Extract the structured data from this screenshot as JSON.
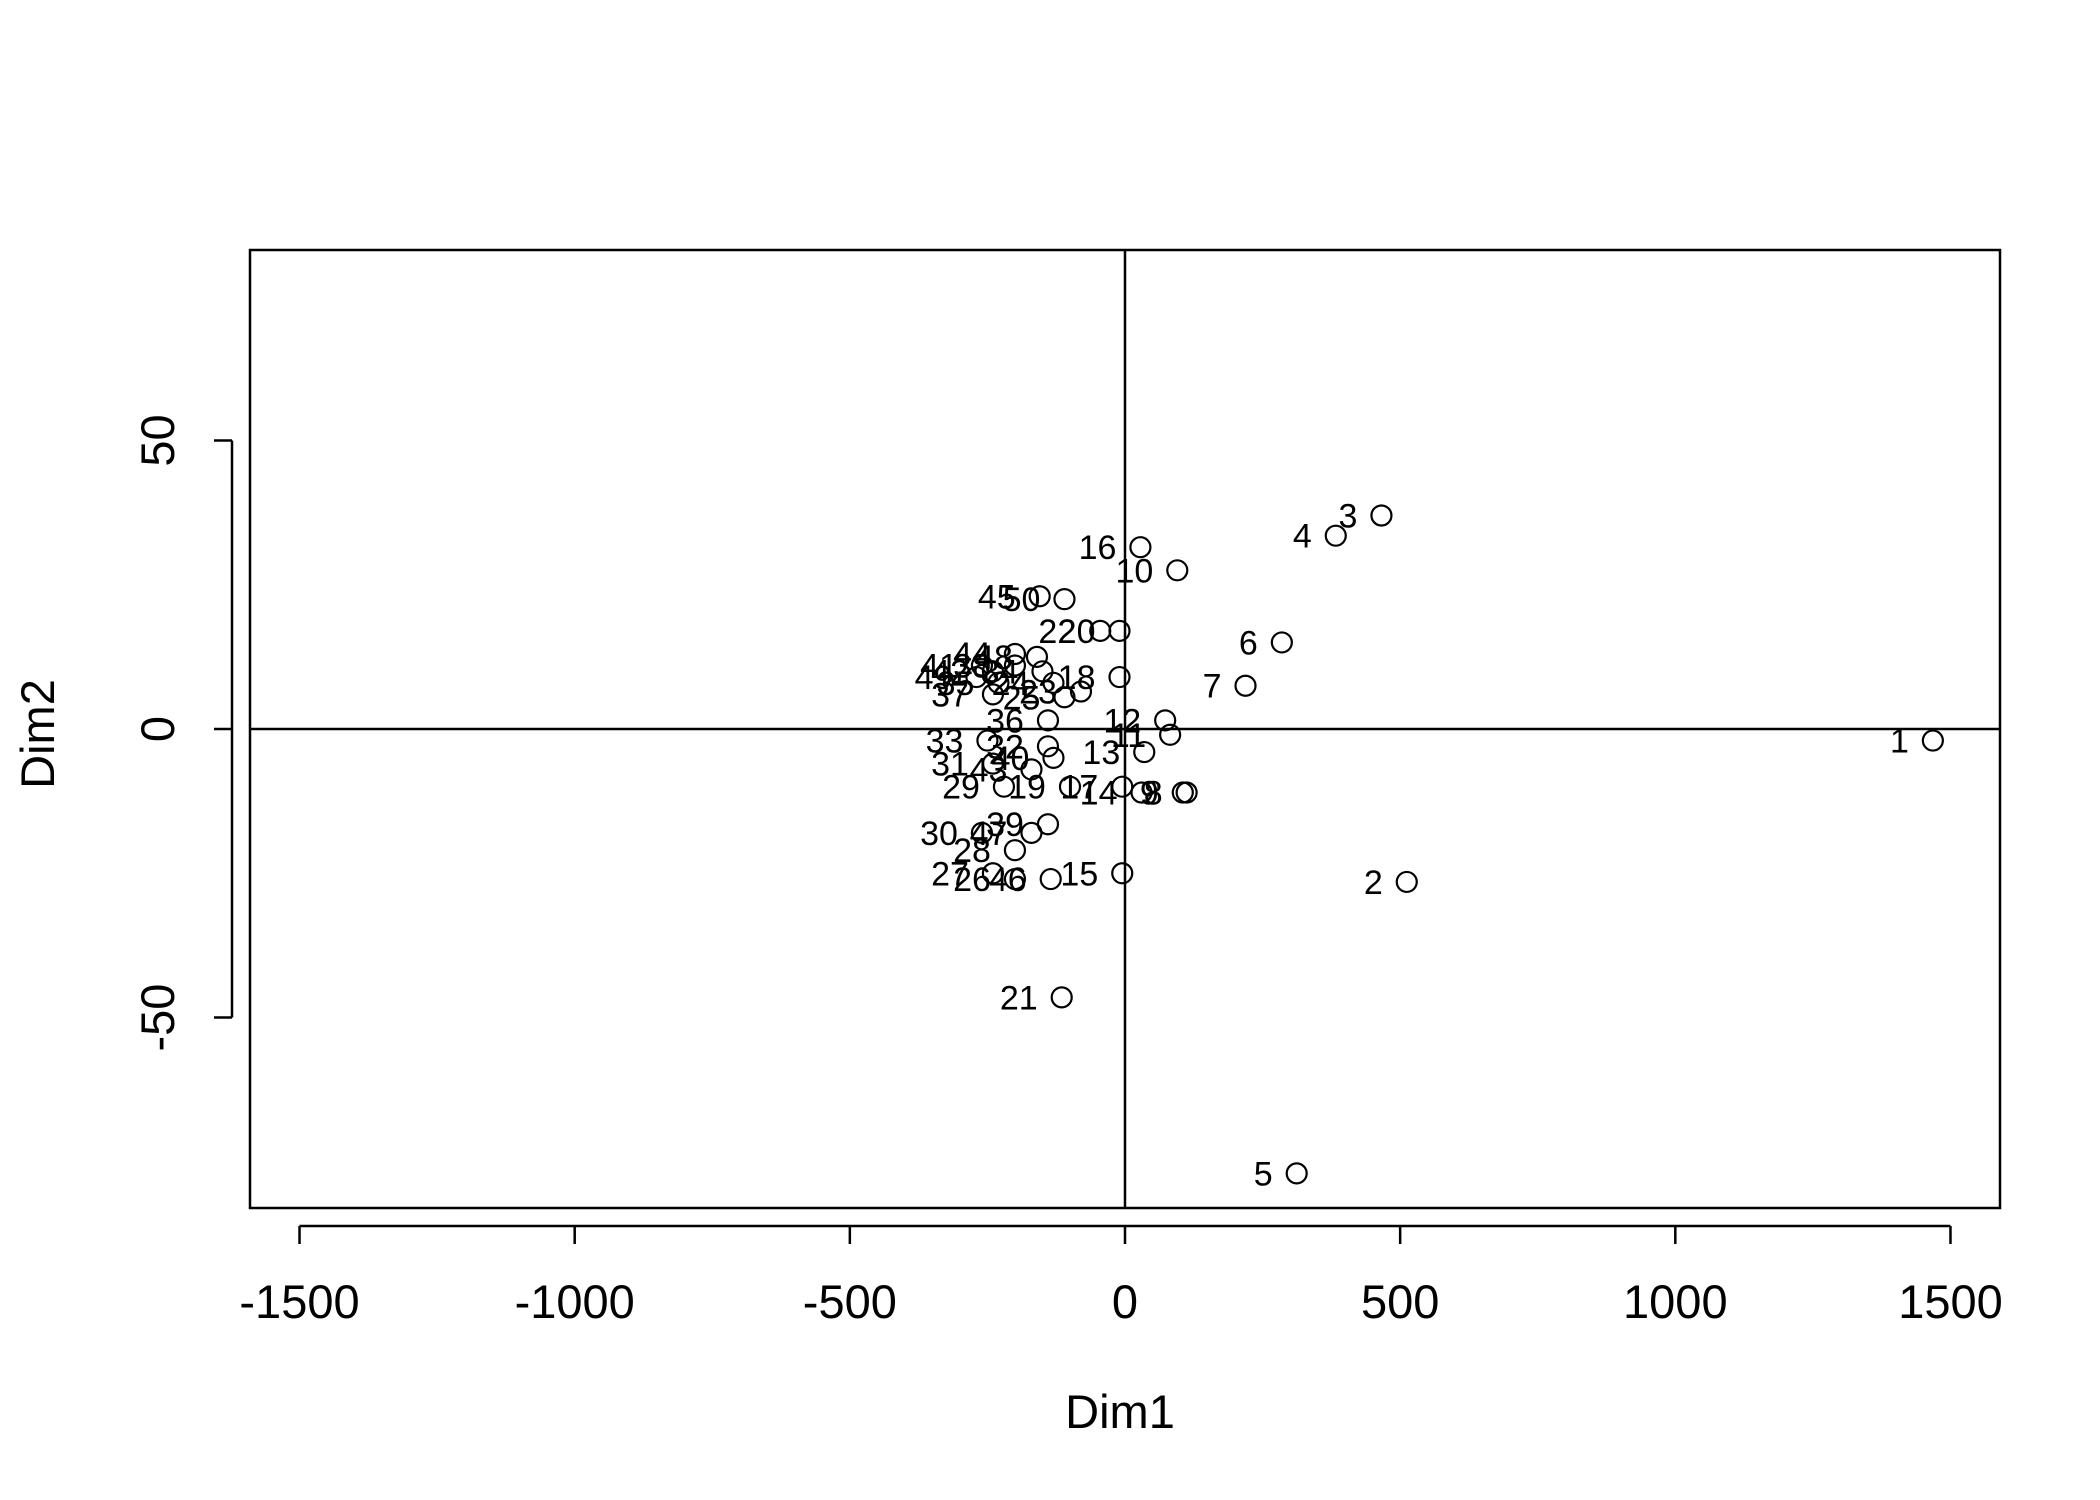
{
  "chart_data": {
    "type": "scatter",
    "title": "",
    "xlabel": "Dim1",
    "ylabel": "Dim2",
    "xlim": [
      -1590,
      1590
    ],
    "ylim": [
      -83,
      83
    ],
    "xticks": [
      -1500,
      -1000,
      -500,
      0,
      500,
      1000,
      1500
    ],
    "yticks": [
      -50,
      0,
      50
    ],
    "xtick_labels": [
      "-1500",
      "-1000",
      "-500",
      "0",
      "500",
      "1000",
      "1500"
    ],
    "ytick_labels": [
      "-50",
      "0",
      "50"
    ],
    "reference_lines": {
      "x": 0,
      "y": 0
    },
    "marker": "open-circle",
    "grid": false,
    "legend": "none",
    "points": [
      {
        "label": "1",
        "x": 1468,
        "y": -2
      },
      {
        "label": "2",
        "x": 512,
        "y": -26.5
      },
      {
        "label": "3",
        "x": 466,
        "y": 37
      },
      {
        "label": "4",
        "x": 383,
        "y": 33.5
      },
      {
        "label": "5",
        "x": 312,
        "y": -77
      },
      {
        "label": "6",
        "x": 285,
        "y": 15
      },
      {
        "label": "7",
        "x": 219,
        "y": 7.5
      },
      {
        "label": "8",
        "x": 112,
        "y": -11
      },
      {
        "label": "9",
        "x": 105,
        "y": -11
      },
      {
        "label": "10",
        "x": 95,
        "y": 27.5
      },
      {
        "label": "11",
        "x": 82,
        "y": -1
      },
      {
        "label": "12",
        "x": 73,
        "y": 1.5
      },
      {
        "label": "13",
        "x": 35,
        "y": -4
      },
      {
        "label": "14",
        "x": 30,
        "y": -11
      },
      {
        "label": "15",
        "x": -5,
        "y": -25
      },
      {
        "label": "16",
        "x": 28,
        "y": 31.5
      },
      {
        "label": "17",
        "x": -5,
        "y": -10
      },
      {
        "label": "18",
        "x": -10,
        "y": 9
      },
      {
        "label": "19",
        "x": -100,
        "y": -10
      },
      {
        "label": "20",
        "x": -10,
        "y": 17
      },
      {
        "label": "21",
        "x": -115,
        "y": -46.5
      },
      {
        "label": "22",
        "x": -45,
        "y": 17
      },
      {
        "label": "23",
        "x": -80,
        "y": 6.5
      },
      {
        "label": "24",
        "x": -130,
        "y": 8
      },
      {
        "label": "25",
        "x": -110,
        "y": 5.5
      },
      {
        "label": "26",
        "x": -200,
        "y": -26
      },
      {
        "label": "27",
        "x": -240,
        "y": -25
      },
      {
        "label": "28",
        "x": -200,
        "y": -21
      },
      {
        "label": "29",
        "x": -220,
        "y": -10
      },
      {
        "label": "30",
        "x": -260,
        "y": -18
      },
      {
        "label": "31",
        "x": -240,
        "y": -6
      },
      {
        "label": "32",
        "x": -140,
        "y": -3
      },
      {
        "label": "33",
        "x": -250,
        "y": -2
      },
      {
        "label": "34",
        "x": -150,
        "y": 10
      },
      {
        "label": "35",
        "x": -230,
        "y": 8
      },
      {
        "label": "36",
        "x": -140,
        "y": 1.5
      },
      {
        "label": "37",
        "x": -240,
        "y": 6
      },
      {
        "label": "38",
        "x": -200,
        "y": 11
      },
      {
        "label": "39",
        "x": -140,
        "y": -16.5
      },
      {
        "label": "40",
        "x": -130,
        "y": -5
      },
      {
        "label": "41",
        "x": -260,
        "y": 11
      },
      {
        "label": "42",
        "x": -240,
        "y": 10
      },
      {
        "label": "43",
        "x": -170,
        "y": -7
      },
      {
        "label": "44",
        "x": -200,
        "y": 13
      },
      {
        "label": "45",
        "x": -155,
        "y": 23
      },
      {
        "label": "46",
        "x": -135,
        "y": -26
      },
      {
        "label": "47",
        "x": -170,
        "y": -18
      },
      {
        "label": "48",
        "x": -160,
        "y": 12.5
      },
      {
        "label": "49",
        "x": -270,
        "y": 9
      },
      {
        "label": "50",
        "x": -110,
        "y": 22.5
      }
    ]
  }
}
